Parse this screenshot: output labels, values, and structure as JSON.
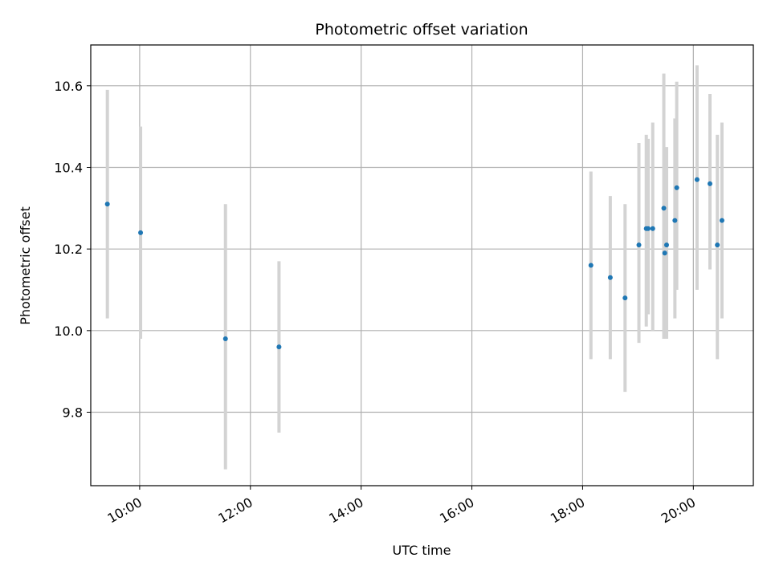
{
  "chart_data": {
    "type": "scatter",
    "title": "Photometric offset variation",
    "xlabel": "UTC time",
    "ylabel": "Photometric offset",
    "x_tick_labels": [
      "10:00",
      "12:00",
      "14:00",
      "16:00",
      "18:00",
      "20:00"
    ],
    "y_tick_labels": [
      "9.8",
      "10.0",
      "10.2",
      "10.4",
      "10.6"
    ],
    "xlim": [
      "09:07",
      "21:05"
    ],
    "ylim": [
      9.62,
      10.7
    ],
    "grid": true,
    "points": [
      {
        "x": "09:25",
        "y": 10.31,
        "low": 10.03,
        "high": 10.59
      },
      {
        "x": "10:01",
        "y": 10.24,
        "low": 9.98,
        "high": 10.5
      },
      {
        "x": "11:33",
        "y": 9.98,
        "low": 9.66,
        "high": 10.31
      },
      {
        "x": "12:31",
        "y": 9.96,
        "low": 9.75,
        "high": 10.17
      },
      {
        "x": "18:09",
        "y": 10.16,
        "low": 9.93,
        "high": 10.39
      },
      {
        "x": "18:30",
        "y": 10.13,
        "low": 9.93,
        "high": 10.33
      },
      {
        "x": "18:46",
        "y": 10.08,
        "low": 9.85,
        "high": 10.31
      },
      {
        "x": "19:01",
        "y": 10.21,
        "low": 9.97,
        "high": 10.46
      },
      {
        "x": "19:09",
        "y": 10.25,
        "low": 10.01,
        "high": 10.48
      },
      {
        "x": "19:11",
        "y": 10.25,
        "low": 10.04,
        "high": 10.47
      },
      {
        "x": "19:16",
        "y": 10.25,
        "low": 10.0,
        "high": 10.51
      },
      {
        "x": "19:28",
        "y": 10.3,
        "low": 9.98,
        "high": 10.63
      },
      {
        "x": "19:29",
        "y": 10.19,
        "low": 9.98,
        "high": 10.41
      },
      {
        "x": "19:31",
        "y": 10.21,
        "low": 9.98,
        "high": 10.45
      },
      {
        "x": "19:40",
        "y": 10.27,
        "low": 10.03,
        "high": 10.52
      },
      {
        "x": "19:42",
        "y": 10.35,
        "low": 10.1,
        "high": 10.61
      },
      {
        "x": "20:04",
        "y": 10.37,
        "low": 10.1,
        "high": 10.65
      },
      {
        "x": "20:18",
        "y": 10.36,
        "low": 10.15,
        "high": 10.58
      },
      {
        "x": "20:26",
        "y": 10.21,
        "low": 9.93,
        "high": 10.48
      },
      {
        "x": "20:31",
        "y": 10.27,
        "low": 10.03,
        "high": 10.51
      }
    ],
    "colors": {
      "point": "#1f77b4",
      "errorbar": "#d3d3d3",
      "grid": "#b0b0b0",
      "frame": "#000000"
    }
  }
}
